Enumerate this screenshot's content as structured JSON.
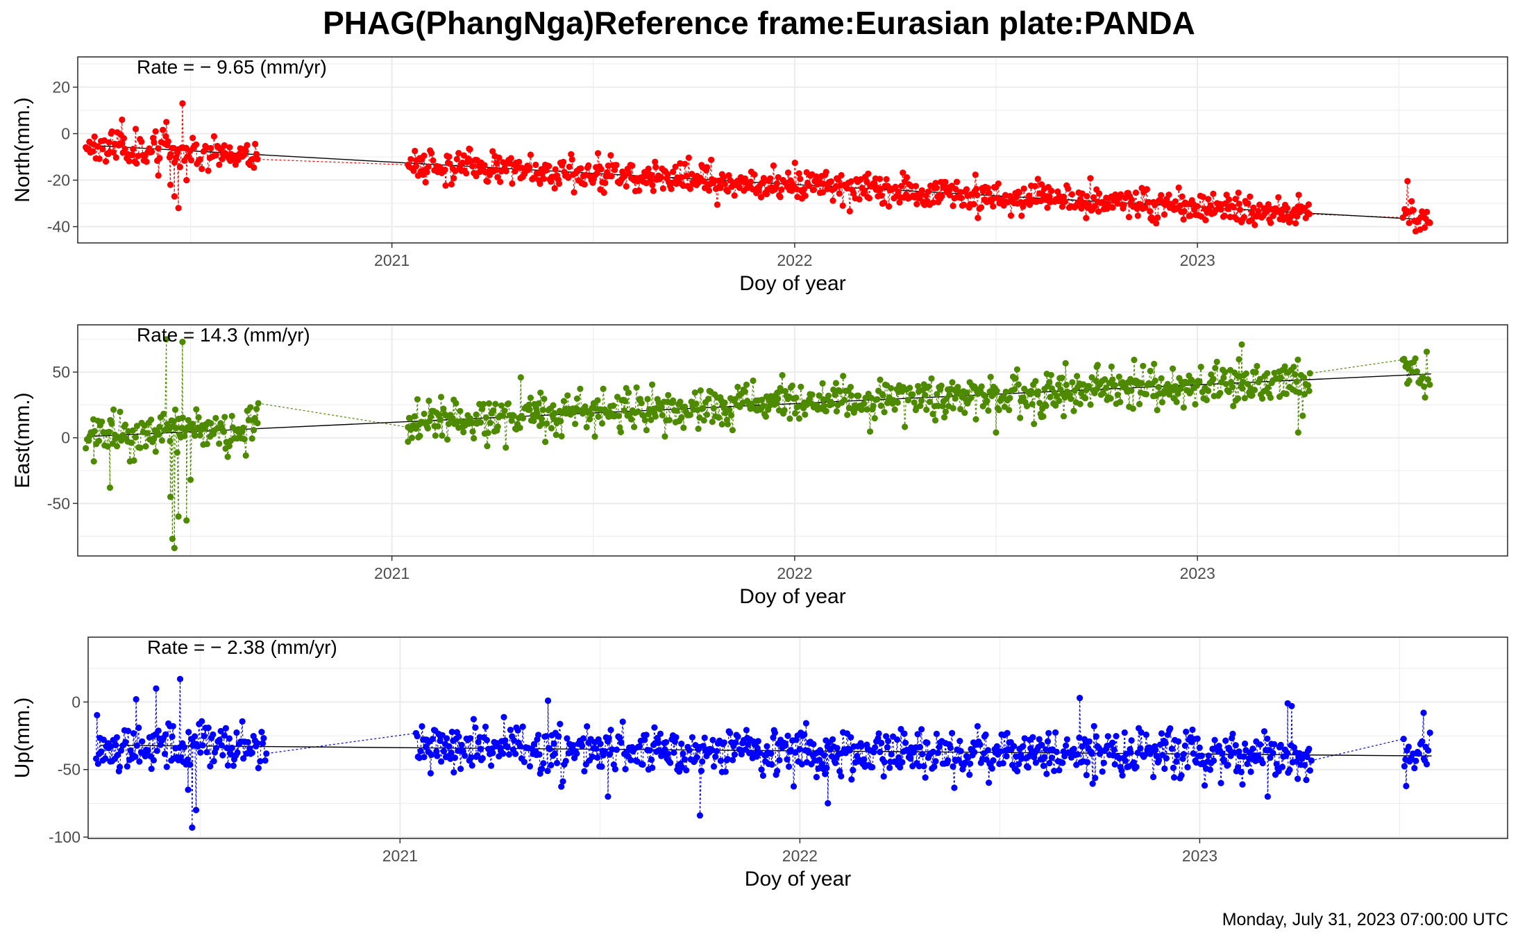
{
  "title": "PHAG(PhangNga)Reference frame:Eurasian plate:PANDA",
  "timestamp": "Monday, July 31, 2023 07:00:00 UTC",
  "chart_data": [
    {
      "type": "scatter",
      "component": "north",
      "color": "#ff0000",
      "ylabel": "North(mm.)",
      "xlabel": "Doy of year",
      "rate_label": "Rate = − 9.65 (mm/yr)",
      "rate_mm_per_yr": -9.65,
      "intercept_mm": -5,
      "xlim": [
        2020.22,
        2023.77
      ],
      "ylim": [
        -47,
        33
      ],
      "yticks": [
        20,
        0,
        -20,
        -40
      ],
      "xticks": [
        {
          "value": 2021,
          "label": "2021"
        },
        {
          "value": 2022,
          "label": "2022"
        },
        {
          "value": 2023,
          "label": "2023"
        }
      ],
      "noise": 3.5,
      "seed": 11,
      "outliers": [
        {
          "x": 2020.48,
          "y": 13
        },
        {
          "x": 2020.47,
          "y": -32
        },
        {
          "x": 2020.46,
          "y": -27
        },
        {
          "x": 2020.45,
          "y": -22
        },
        {
          "x": 2020.49,
          "y": -20
        },
        {
          "x": 2020.44,
          "y": 5
        },
        {
          "x": 2020.33,
          "y": 6
        },
        {
          "x": 2020.42,
          "y": -18
        }
      ]
    },
    {
      "type": "scatter",
      "component": "east",
      "color": "#4d8a00",
      "ylabel": "East(mm.)",
      "xlabel": "Doy of year",
      "rate_label": "Rate = 14.3 (mm/yr)",
      "rate_mm_per_yr": 14.3,
      "intercept_mm": 1,
      "xlim": [
        2020.22,
        2023.77
      ],
      "ylim": [
        -90,
        86
      ],
      "yticks": [
        50,
        0,
        -50
      ],
      "xticks": [
        {
          "value": 2021,
          "label": "2021"
        },
        {
          "value": 2022,
          "label": "2022"
        },
        {
          "value": 2023,
          "label": "2023"
        }
      ],
      "noise": 8,
      "seed": 23,
      "outliers": [
        {
          "x": 2020.44,
          "y": 75
        },
        {
          "x": 2020.48,
          "y": 73
        },
        {
          "x": 2020.46,
          "y": -84
        },
        {
          "x": 2020.455,
          "y": -77
        },
        {
          "x": 2020.47,
          "y": -60
        },
        {
          "x": 2020.49,
          "y": -63
        },
        {
          "x": 2020.3,
          "y": -38
        },
        {
          "x": 2020.45,
          "y": -45
        },
        {
          "x": 2020.5,
          "y": -32
        },
        {
          "x": 2020.26,
          "y": -18
        },
        {
          "x": 2021.32,
          "y": 46
        },
        {
          "x": 2022.75,
          "y": 54
        },
        {
          "x": 2023.11,
          "y": 71
        },
        {
          "x": 2023.25,
          "y": 4
        },
        {
          "x": 2022.5,
          "y": 4
        },
        {
          "x": 2021.04,
          "y": -3
        }
      ]
    },
    {
      "type": "scatter",
      "component": "up",
      "color": "#0000ff",
      "ylabel": "Up(mm.)",
      "xlabel": "Doy of year",
      "rate_label": "Rate = − 2.38 (mm/yr)",
      "rate_mm_per_yr": -2.38,
      "intercept_mm": -32,
      "xlim": [
        2020.22,
        2023.77
      ],
      "ylim": [
        -101,
        48
      ],
      "yticks": [
        0,
        -50,
        -100
      ],
      "xticks": [
        {
          "value": 2021,
          "label": "2021"
        },
        {
          "value": 2022,
          "label": "2022"
        },
        {
          "value": 2023,
          "label": "2023"
        }
      ],
      "noise": 9,
      "seed": 37,
      "outliers": [
        {
          "x": 2020.48,
          "y": -93
        },
        {
          "x": 2020.49,
          "y": -80
        },
        {
          "x": 2020.45,
          "y": 17
        },
        {
          "x": 2020.34,
          "y": 2
        },
        {
          "x": 2020.39,
          "y": 10
        },
        {
          "x": 2021.75,
          "y": -84
        },
        {
          "x": 2022.07,
          "y": -75
        },
        {
          "x": 2022.7,
          "y": 3
        },
        {
          "x": 2023.17,
          "y": -70
        },
        {
          "x": 2023.22,
          "y": -1
        },
        {
          "x": 2023.23,
          "y": -3
        },
        {
          "x": 2023.56,
          "y": -8
        },
        {
          "x": 2021.37,
          "y": 1
        },
        {
          "x": 2020.47,
          "y": -65
        },
        {
          "x": 2021.52,
          "y": -70
        }
      ]
    }
  ]
}
